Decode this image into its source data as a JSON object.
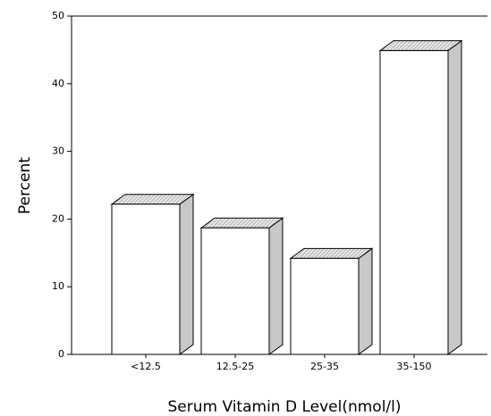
{
  "chart_data": {
    "type": "bar3d",
    "y_label": "Percent",
    "x_label": "Serum Vitamin D Level(nmol/l)",
    "categories": [
      "<12.5",
      "12.5-25",
      "25-35",
      "35-150"
    ],
    "values": [
      22.2,
      18.7,
      14.2,
      44.9
    ],
    "color": "#ffffff",
    "side_color": "#c8c8c8",
    "ylim": [
      0,
      50
    ],
    "yticks": [
      0,
      10,
      20,
      30,
      40,
      50
    ]
  }
}
